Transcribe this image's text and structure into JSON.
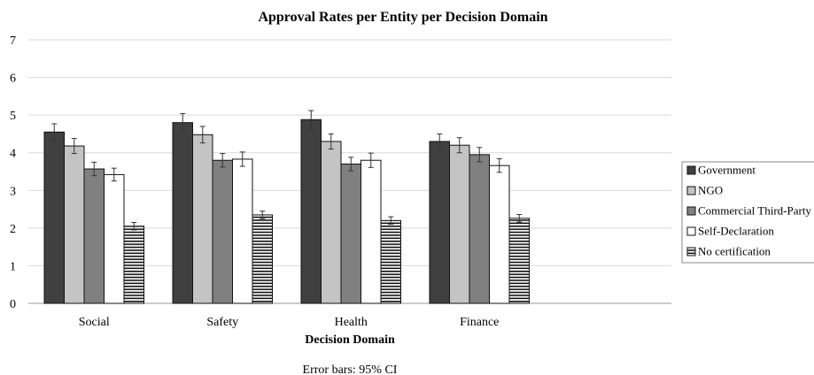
{
  "chart_data": {
    "type": "bar",
    "title": "Approval Rates per Entity per Decision Domain",
    "xlabel": "Decision Domain",
    "ylabel": "",
    "ylim": [
      0,
      7
    ],
    "yticks": [
      0,
      1,
      2,
      3,
      4,
      5,
      6,
      7
    ],
    "grid": true,
    "legend_position": "right",
    "categories": [
      "Social",
      "Safety",
      "Health",
      "Finance"
    ],
    "series": [
      {
        "name": "Government",
        "color": "#404040",
        "pattern": "solid",
        "values": [
          4.55,
          4.8,
          4.88,
          4.3
        ],
        "ci": [
          0.22,
          0.24,
          0.24,
          0.2
        ]
      },
      {
        "name": "NGO",
        "color": "#c4c4c4",
        "pattern": "solid",
        "values": [
          4.18,
          4.48,
          4.3,
          4.2
        ],
        "ci": [
          0.2,
          0.22,
          0.2,
          0.2
        ]
      },
      {
        "name": "Commercial Third-Party",
        "color": "#808080",
        "pattern": "solid",
        "values": [
          3.57,
          3.8,
          3.7,
          3.95
        ],
        "ci": [
          0.18,
          0.18,
          0.18,
          0.19
        ]
      },
      {
        "name": "Self-Declaration",
        "color": "#ffffff",
        "pattern": "solid",
        "values": [
          3.42,
          3.83,
          3.8,
          3.66
        ],
        "ci": [
          0.17,
          0.19,
          0.19,
          0.18
        ]
      },
      {
        "name": "No certification",
        "color": "#ffffff",
        "pattern": "hstripes",
        "values": [
          2.05,
          2.35,
          2.2,
          2.26
        ],
        "ci": [
          0.1,
          0.1,
          0.1,
          0.1
        ]
      }
    ],
    "note": "Error bars: 95% CI"
  }
}
